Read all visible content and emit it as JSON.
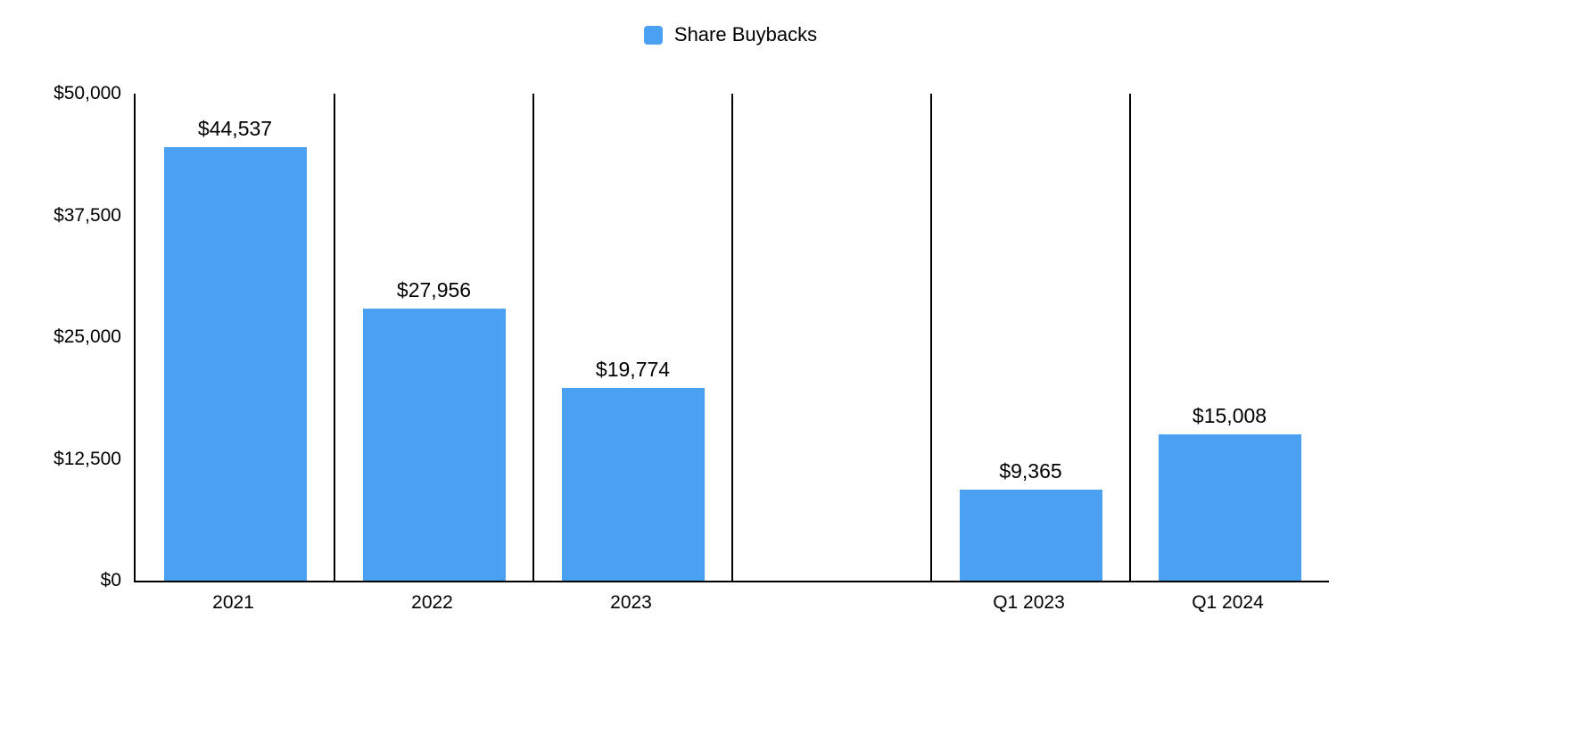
{
  "chart_data": {
    "type": "bar",
    "title": "",
    "xlabel": "",
    "ylabel": "",
    "categories": [
      "2021",
      "2022",
      "2023",
      "",
      "Q1 2023",
      "Q1 2024"
    ],
    "values": [
      44537,
      27956,
      19774,
      null,
      9365,
      15008
    ],
    "data_labels": [
      "$44,537",
      "$27,956",
      "$19,774",
      "",
      "$9,365",
      "$15,008"
    ],
    "ylim": [
      0,
      50000
    ],
    "y_ticks": [
      {
        "value": 50000,
        "label": "$50,000"
      },
      {
        "value": 37500,
        "label": "$37,500"
      },
      {
        "value": 25000,
        "label": "$25,000"
      },
      {
        "value": 12500,
        "label": "$12,500"
      },
      {
        "value": 0,
        "label": "$0"
      }
    ],
    "legend": {
      "label": "Share Buybacks",
      "position": "top"
    },
    "bar_color": "#4aa1f2",
    "axis_color": "#000000",
    "grid": "vertical-column-separators"
  }
}
